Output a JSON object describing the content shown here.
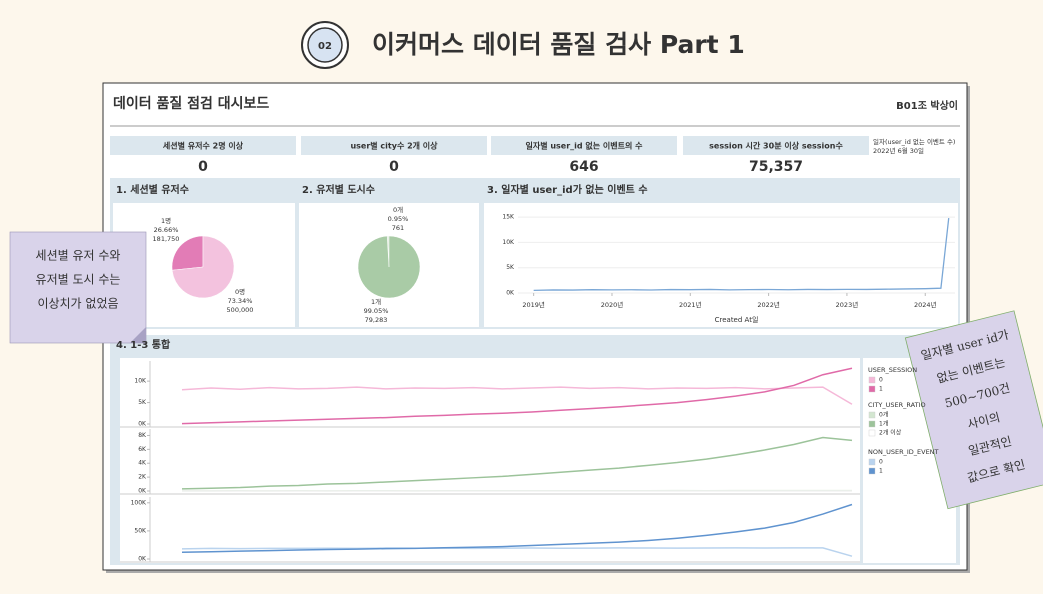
{
  "header": {
    "badge": "02",
    "title": "이커머스 데이터 품질 검사 Part 1"
  },
  "dashboard": {
    "title": "데이터 품질 점검 대시보드",
    "author": "B01조 박상이",
    "kpis": [
      {
        "label": "세션별 유저수 2명 이상",
        "value": "0"
      },
      {
        "label": "user별 city수 2개 이상",
        "value": "0"
      },
      {
        "label": "일자별 user_id 없는 이벤트의 수",
        "value": "646"
      },
      {
        "label": "session 시간 30분 이상 session수",
        "value": "75,357"
      }
    ],
    "note": [
      "일자(user_id 없는 이벤트 수)",
      "2022년 6월 30일"
    ]
  },
  "chart_data": [
    {
      "type": "pie",
      "title": "1. 세션별 유저수",
      "categories": [
        "1명",
        "0명"
      ],
      "values": [
        181750,
        500000
      ],
      "percent_labels": [
        "26.66%",
        "73.34%"
      ],
      "value_labels": [
        "181,750",
        "500,000"
      ],
      "colors": [
        "#e27cb6",
        "#f3c2de"
      ]
    },
    {
      "type": "pie",
      "title": "2. 유저별 도시수",
      "categories": [
        "0개",
        "1개"
      ],
      "values": [
        761,
        79283
      ],
      "percent_labels": [
        "0.95%",
        "99.05%"
      ],
      "value_labels": [
        "761",
        "79,283"
      ],
      "colors": [
        "#dde9db",
        "#a9cba6"
      ]
    },
    {
      "type": "line",
      "title": "3. 일자별 user_id가 없는 이벤트 수",
      "x_label": "Created At일",
      "x": [
        2019,
        2019.25,
        2019.5,
        2019.75,
        2020,
        2020.25,
        2020.5,
        2020.75,
        2021,
        2021.25,
        2021.5,
        2021.75,
        2022,
        2022.25,
        2022.5,
        2022.75,
        2023,
        2023.25,
        2023.5,
        2023.75,
        2024,
        2024.2,
        2024.3
      ],
      "values": [
        520,
        600,
        580,
        650,
        620,
        640,
        600,
        680,
        650,
        700,
        620,
        660,
        690,
        640,
        700,
        680,
        720,
        700,
        750,
        800,
        850,
        950,
        14800
      ],
      "color": "#7aa7d6",
      "xlim": [
        2018.8,
        2024.38
      ],
      "ylim": [
        0,
        16000
      ],
      "xticks": [
        {
          "value": 2019,
          "label": "2019년"
        },
        {
          "value": 2020,
          "label": "2020년"
        },
        {
          "value": 2021,
          "label": "2021년"
        },
        {
          "value": 2022,
          "label": "2022년"
        },
        {
          "value": 2023,
          "label": "2023년"
        },
        {
          "value": 2024,
          "label": "2024년"
        }
      ],
      "yticks": [
        {
          "value": 0,
          "label": "0K"
        },
        {
          "value": 5000,
          "label": "5K"
        },
        {
          "value": 10000,
          "label": "10K"
        },
        {
          "value": 15000,
          "label": "15K"
        }
      ]
    },
    {
      "type": "line",
      "title": "4. 1-3 통합",
      "legend_title": "USER_SESSION",
      "ylim": [
        0,
        14000
      ],
      "yticks": [
        {
          "value": 0,
          "label": "0K"
        },
        {
          "value": 5000,
          "label": "5K"
        },
        {
          "value": 10000,
          "label": "10K"
        }
      ],
      "series": [
        {
          "name": "0",
          "color": "#f5b8d8",
          "values": [
            8000,
            8400,
            8100,
            8500,
            8200,
            8300,
            8600,
            8200,
            8400,
            8300,
            8500,
            8200,
            8400,
            8600,
            8300,
            8500,
            8200,
            8400,
            8300,
            8500,
            8200,
            8400,
            8600,
            4600
          ]
        },
        {
          "name": "1",
          "color": "#e06aa8",
          "values": [
            100,
            300,
            500,
            700,
            900,
            1100,
            1300,
            1500,
            1800,
            2000,
            2300,
            2500,
            2800,
            3200,
            3600,
            4000,
            4500,
            5000,
            5700,
            6500,
            7500,
            9000,
            11500,
            13000
          ]
        }
      ]
    },
    {
      "type": "line",
      "legend_title": "CITY_USER_RATIO",
      "ylim": [
        0,
        8500
      ],
      "yticks": [
        {
          "value": 0,
          "label": "0K"
        },
        {
          "value": 2000,
          "label": "2K"
        },
        {
          "value": 4000,
          "label": "4K"
        },
        {
          "value": 6000,
          "label": "6K"
        },
        {
          "value": 8000,
          "label": "8K"
        }
      ],
      "series": [
        {
          "name": "0개",
          "color": "#d3e6d0",
          "values": [
            20,
            20,
            30,
            20,
            30,
            20,
            30,
            30,
            20,
            30,
            30,
            40,
            30,
            40,
            30,
            40,
            40,
            50,
            40,
            50,
            50,
            60,
            60,
            50
          ]
        },
        {
          "name": "1개",
          "color": "#9cc39a",
          "values": [
            300,
            400,
            500,
            700,
            800,
            1000,
            1100,
            1300,
            1500,
            1700,
            1900,
            2100,
            2400,
            2700,
            3000,
            3300,
            3700,
            4100,
            4600,
            5200,
            5900,
            6700,
            7700,
            7300
          ]
        },
        {
          "name": "2개 이상",
          "color": "#ffffff",
          "values": [
            5,
            5,
            5,
            5,
            5,
            5,
            5,
            5,
            5,
            5,
            5,
            5,
            5,
            5,
            5,
            5,
            5,
            5,
            5,
            5,
            5,
            5,
            5,
            5
          ]
        }
      ]
    },
    {
      "type": "line",
      "legend_title": "NON_USER_ID_EVENT",
      "ylim": [
        0,
        105000
      ],
      "yticks": [
        {
          "value": 0,
          "label": "0K"
        },
        {
          "value": 50000,
          "label": "50K"
        },
        {
          "value": 100000,
          "label": "100K"
        }
      ],
      "series": [
        {
          "name": "0",
          "color": "#b9d3ee",
          "values": [
            18000,
            19000,
            18500,
            19000,
            18800,
            19200,
            19000,
            19500,
            19200,
            19400,
            19000,
            19300,
            19600,
            19200,
            19400,
            19800,
            19500,
            19300,
            19600,
            19900,
            19500,
            19700,
            19800,
            5000
          ]
        },
        {
          "name": "1",
          "color": "#5f93cf",
          "values": [
            12000,
            13000,
            14000,
            15000,
            16000,
            17000,
            17500,
            18500,
            19000,
            20000,
            21000,
            22000,
            24000,
            26000,
            28000,
            30000,
            33000,
            37000,
            42000,
            48000,
            55000,
            65000,
            80000,
            97000
          ]
        }
      ]
    }
  ],
  "notes": {
    "left": [
      "세션별 유저 수와",
      "유저별 도시 수는",
      "이상치가 없었음"
    ],
    "right": [
      "일자별 user id가",
      "없는 이벤트는",
      "500~700건",
      "사이의",
      "일관적인",
      "값으로 확인"
    ]
  }
}
